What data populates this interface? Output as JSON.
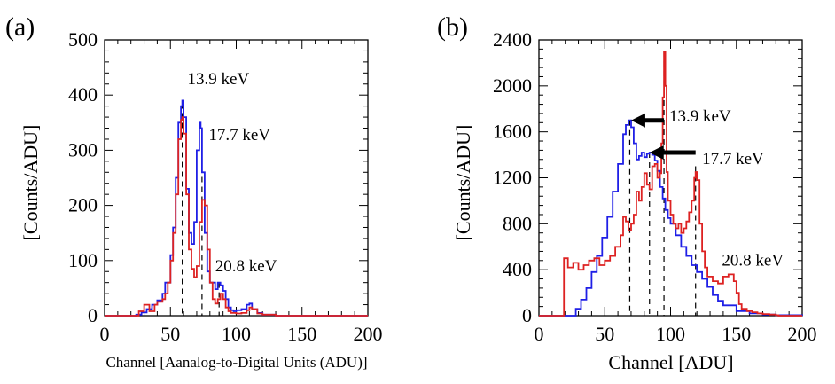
{
  "colors": {
    "blue": "#1f1fe6",
    "red": "#dd2222",
    "axis": "#000000"
  },
  "chart_data": [
    {
      "panel_label": "(a)",
      "type": "line",
      "xlabel": "Channel [Aanalog-to-Digital Units (ADU)]",
      "ylabel": "[Counts/ADU]",
      "xlim": [
        0,
        200
      ],
      "ylim": [
        0,
        500
      ],
      "xticks": [
        0,
        50,
        100,
        150,
        200
      ],
      "yticks": [
        0,
        100,
        200,
        300,
        400,
        500
      ],
      "xtick_labels": [
        "0",
        "50",
        "100",
        "150",
        "200"
      ],
      "ytick_labels": [
        "0",
        "100",
        "200",
        "300",
        "400",
        "500"
      ],
      "annotations": [
        {
          "text": "13.9 keV",
          "x": 63,
          "y": 420
        },
        {
          "text": "17.7 keV",
          "x": 79,
          "y": 318
        },
        {
          "text": "20.8 keV",
          "x": 84,
          "y": 80
        }
      ],
      "dashed_lines": [
        {
          "x": 59,
          "y": 385
        },
        {
          "x": 74,
          "y": 340
        },
        {
          "x": 87,
          "y": 60
        }
      ],
      "series": [
        {
          "name": "blue",
          "color": "#1f1fe6",
          "x": [
            0,
            20,
            24,
            28,
            32,
            36,
            40,
            44,
            46,
            48,
            50,
            52,
            54,
            56,
            58,
            59,
            60,
            62,
            64,
            66,
            68,
            70,
            72,
            73,
            74,
            76,
            78,
            80,
            82,
            84,
            86,
            88,
            90,
            92,
            94,
            96,
            98,
            100,
            104,
            108,
            110,
            112,
            116,
            120,
            130,
            150,
            200
          ],
          "y": [
            0,
            0,
            2,
            6,
            12,
            20,
            28,
            40,
            60,
            60,
            110,
            160,
            250,
            350,
            380,
            390,
            360,
            230,
            150,
            130,
            170,
            300,
            350,
            340,
            260,
            150,
            80,
            60,
            60,
            48,
            60,
            55,
            45,
            30,
            15,
            10,
            8,
            10,
            12,
            20,
            22,
            12,
            5,
            2,
            0,
            0,
            0
          ]
        },
        {
          "name": "red",
          "color": "#dd2222",
          "x": [
            0,
            22,
            26,
            30,
            34,
            38,
            40,
            44,
            46,
            48,
            50,
            52,
            54,
            56,
            58,
            59,
            60,
            62,
            64,
            66,
            68,
            70,
            72,
            74,
            76,
            78,
            80,
            82,
            84,
            86,
            88,
            90,
            92,
            94,
            96,
            100,
            104,
            108,
            110,
            112,
            116,
            120,
            130,
            200
          ],
          "y": [
            0,
            0,
            8,
            20,
            8,
            20,
            25,
            30,
            40,
            60,
            100,
            150,
            220,
            320,
            355,
            360,
            330,
            220,
            120,
            85,
            70,
            90,
            170,
            210,
            200,
            120,
            60,
            30,
            22,
            30,
            40,
            30,
            15,
            8,
            5,
            4,
            5,
            10,
            15,
            12,
            4,
            2,
            0,
            0
          ]
        }
      ]
    },
    {
      "panel_label": "(b)",
      "type": "line",
      "xlabel": "Channel [ADU]",
      "ylabel": "[Counts/ADU]",
      "xlim": [
        0,
        200
      ],
      "ylim": [
        0,
        2400
      ],
      "xticks": [
        0,
        50,
        100,
        150,
        200
      ],
      "yticks": [
        0,
        400,
        800,
        1200,
        1600,
        2000,
        2400
      ],
      "xtick_labels": [
        "0",
        "50",
        "100",
        "150",
        "200"
      ],
      "ytick_labels": [
        "0",
        "400",
        "800",
        "1200",
        "1600",
        "2000",
        "2400"
      ],
      "annotations": [
        {
          "text": "13.9 keV",
          "x": 99,
          "y": 1690
        },
        {
          "text": "17.7 keV",
          "x": 124,
          "y": 1320
        },
        {
          "text": "20.8 keV",
          "x": 139,
          "y": 435
        }
      ],
      "dashed_lines": [
        {
          "x": 69,
          "y": 1700
        },
        {
          "x": 84,
          "y": 1420
        },
        {
          "x": 95,
          "y": 2300
        },
        {
          "x": 119,
          "y": 1300
        }
      ],
      "arrows": [
        {
          "from_x": 95,
          "to_x": 70,
          "y": 1700
        },
        {
          "from_x": 119,
          "to_x": 84,
          "y": 1420
        }
      ],
      "series": [
        {
          "name": "blue",
          "color": "#1f1fe6",
          "x": [
            0,
            24,
            28,
            32,
            36,
            40,
            44,
            48,
            52,
            56,
            60,
            64,
            66,
            68,
            70,
            72,
            74,
            76,
            78,
            80,
            82,
            84,
            86,
            88,
            90,
            92,
            94,
            96,
            98,
            100,
            104,
            108,
            112,
            116,
            120,
            124,
            128,
            132,
            136,
            140,
            150,
            160,
            170,
            180,
            200
          ],
          "y": [
            0,
            0,
            60,
            140,
            240,
            380,
            520,
            680,
            860,
            1080,
            1320,
            1580,
            1660,
            1700,
            1640,
            1500,
            1360,
            1390,
            1420,
            1380,
            1410,
            1420,
            1400,
            1350,
            1260,
            1120,
            1020,
            920,
            850,
            800,
            700,
            600,
            520,
            440,
            380,
            320,
            250,
            180,
            130,
            90,
            40,
            20,
            10,
            5,
            0
          ],
          "dy": [
            0,
            0,
            0,
            0,
            0,
            0,
            0,
            0,
            0,
            0,
            0,
            0,
            0,
            0,
            0,
            0,
            0,
            0,
            0,
            0,
            0,
            0,
            0,
            0,
            0,
            0,
            0,
            0,
            0,
            0,
            0,
            0,
            0,
            0,
            0,
            0,
            0,
            0,
            0,
            0,
            0,
            0,
            0,
            0,
            0
          ]
        },
        {
          "name": "red",
          "color": "#dd2222",
          "x": [
            0,
            18,
            19,
            22,
            26,
            30,
            34,
            38,
            42,
            46,
            50,
            54,
            58,
            62,
            64,
            66,
            68,
            70,
            72,
            74,
            76,
            78,
            80,
            82,
            84,
            86,
            88,
            90,
            92,
            93,
            94,
            95,
            96,
            97,
            98,
            100,
            102,
            104,
            106,
            108,
            110,
            112,
            114,
            116,
            118,
            119,
            120,
            122,
            124,
            126,
            128,
            132,
            136,
            140,
            144,
            148,
            150,
            152,
            154,
            158,
            162,
            166,
            170,
            175,
            180,
            182,
            200
          ],
          "y": [
            0,
            0,
            500,
            420,
            460,
            400,
            440,
            480,
            500,
            440,
            480,
            520,
            600,
            700,
            860,
            820,
            740,
            800,
            880,
            1080,
            1000,
            1120,
            1240,
            1140,
            1100,
            1300,
            1320,
            1200,
            1240,
            1500,
            1900,
            2300,
            2000,
            1250,
            1000,
            880,
            800,
            760,
            800,
            720,
            760,
            820,
            900,
            1000,
            1200,
            1250,
            1180,
            800,
            560,
            420,
            340,
            300,
            280,
            340,
            360,
            300,
            200,
            100,
            60,
            40,
            30,
            20,
            15,
            10,
            5,
            0,
            0
          ]
        }
      ]
    }
  ]
}
